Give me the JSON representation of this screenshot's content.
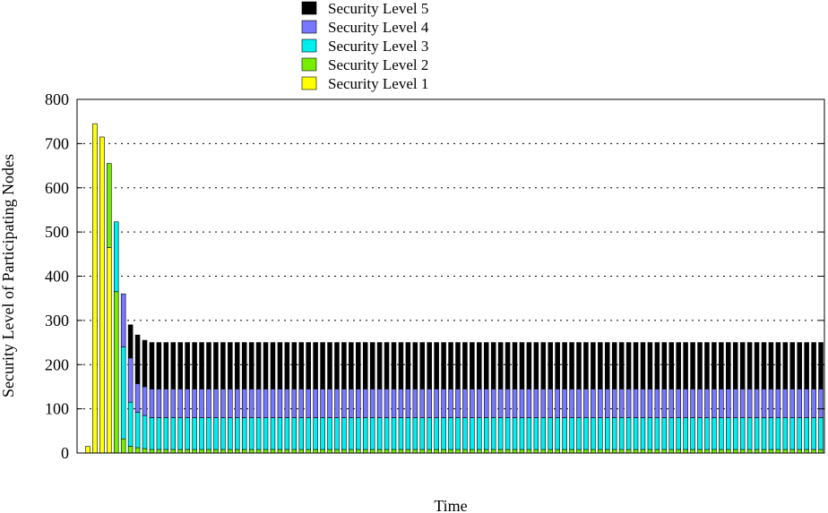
{
  "chart_data": {
    "type": "bar",
    "stacked": true,
    "xlabel": "Time",
    "ylabel": "Security Level of Participating Nodes",
    "ylim": [
      0,
      800
    ],
    "yticks": [
      0,
      100,
      200,
      300,
      400,
      500,
      600,
      700,
      800
    ],
    "ytick_labels": [
      "0",
      "100",
      "200",
      "300",
      "400",
      "500",
      "600",
      "700",
      "800"
    ],
    "grid": "horizontal dotted",
    "legend_position": "top",
    "x": [
      1,
      2,
      3,
      4,
      5,
      6,
      7,
      8,
      9,
      10,
      11,
      12,
      13,
      14,
      15,
      16,
      17,
      18,
      19,
      20,
      21,
      22,
      23,
      24,
      25,
      26,
      27,
      28,
      29,
      30,
      31,
      32,
      33,
      34,
      35,
      36,
      37,
      38,
      39,
      40,
      41,
      42,
      43,
      44,
      45,
      46,
      47,
      48,
      49,
      50,
      51,
      52,
      53,
      54,
      55,
      56,
      57,
      58,
      59,
      60,
      61,
      62,
      63,
      64,
      65,
      66,
      67,
      68,
      69,
      70,
      71,
      72,
      73,
      74,
      75,
      76,
      77,
      78,
      79,
      80,
      81,
      82,
      83,
      84,
      85,
      86,
      87,
      88,
      89,
      90,
      91,
      92,
      93,
      94,
      95,
      96,
      97,
      98,
      99,
      100,
      101,
      102,
      103,
      104
    ],
    "series": [
      {
        "name": "Security Level 1",
        "color": "#ffff00",
        "values": [
          15,
          745,
          715,
          465,
          0,
          0,
          0,
          0,
          0,
          0,
          0,
          0,
          0,
          0,
          0,
          0,
          0,
          0,
          0,
          0,
          0,
          0,
          0,
          0,
          0,
          0,
          0,
          0,
          0,
          0,
          0,
          0,
          0,
          0,
          0,
          0,
          0,
          0,
          0,
          0,
          0,
          0,
          0,
          0,
          0,
          0,
          0,
          0,
          0,
          0,
          0,
          0,
          0,
          0,
          0,
          0,
          0,
          0,
          0,
          0,
          0,
          0,
          0,
          0,
          0,
          0,
          0,
          0,
          0,
          0,
          0,
          0,
          0,
          0,
          0,
          0,
          0,
          0,
          0,
          0,
          0,
          0,
          0,
          0,
          0,
          0,
          0,
          0,
          0,
          0,
          0,
          0,
          0,
          0,
          0,
          0,
          0,
          0,
          0,
          0,
          0,
          0,
          0,
          0
        ]
      },
      {
        "name": "Security Level 2",
        "color": "#77ee00",
        "values": [
          0,
          0,
          0,
          190,
          365,
          32,
          15,
          12,
          10,
          8,
          8,
          8,
          8,
          8,
          8,
          8,
          8,
          8,
          8,
          8,
          8,
          8,
          8,
          8,
          8,
          8,
          8,
          8,
          8,
          8,
          8,
          8,
          8,
          8,
          8,
          8,
          8,
          8,
          8,
          8,
          8,
          8,
          8,
          8,
          8,
          8,
          8,
          8,
          8,
          8,
          8,
          8,
          8,
          8,
          8,
          8,
          8,
          8,
          8,
          8,
          8,
          8,
          8,
          8,
          8,
          8,
          8,
          8,
          8,
          8,
          8,
          8,
          8,
          8,
          8,
          8,
          8,
          8,
          8,
          8,
          8,
          8,
          8,
          8,
          8,
          8,
          8,
          8,
          8,
          8,
          8,
          8,
          8,
          8,
          8,
          8,
          8,
          8,
          8,
          8,
          8,
          8,
          8,
          8
        ]
      },
      {
        "name": "Security Level 3",
        "color": "#00eeee",
        "values": [
          0,
          0,
          0,
          0,
          158,
          208,
          100,
          80,
          75,
          72,
          72,
          72,
          72,
          72,
          72,
          72,
          72,
          72,
          72,
          72,
          72,
          72,
          72,
          72,
          72,
          72,
          72,
          72,
          72,
          72,
          72,
          72,
          72,
          72,
          72,
          72,
          72,
          72,
          72,
          72,
          72,
          72,
          72,
          72,
          72,
          72,
          72,
          72,
          72,
          72,
          72,
          72,
          72,
          72,
          72,
          72,
          72,
          72,
          72,
          72,
          72,
          72,
          72,
          72,
          72,
          72,
          72,
          72,
          72,
          72,
          72,
          72,
          72,
          72,
          72,
          72,
          72,
          72,
          72,
          72,
          72,
          72,
          72,
          72,
          72,
          72,
          72,
          72,
          72,
          72,
          72,
          72,
          72,
          72,
          72,
          72,
          72,
          72,
          72,
          72,
          72,
          72,
          72,
          72
        ]
      },
      {
        "name": "Security Level 4",
        "color": "#7777ff",
        "values": [
          0,
          0,
          0,
          0,
          0,
          120,
          100,
          65,
          65,
          65,
          65,
          65,
          65,
          65,
          65,
          65,
          65,
          65,
          65,
          65,
          65,
          65,
          65,
          65,
          65,
          65,
          65,
          65,
          65,
          65,
          65,
          65,
          65,
          65,
          65,
          65,
          65,
          65,
          65,
          65,
          65,
          65,
          65,
          65,
          65,
          65,
          65,
          65,
          65,
          65,
          65,
          65,
          65,
          65,
          65,
          65,
          65,
          65,
          65,
          65,
          65,
          65,
          65,
          65,
          65,
          65,
          65,
          65,
          65,
          65,
          65,
          65,
          65,
          65,
          65,
          65,
          65,
          65,
          65,
          65,
          65,
          65,
          65,
          65,
          65,
          65,
          65,
          65,
          65,
          65,
          65,
          65,
          65,
          65,
          65,
          65,
          65,
          65,
          65,
          65,
          65,
          65,
          65,
          65
        ]
      },
      {
        "name": "Security Level 5",
        "color": "#000000",
        "values": [
          0,
          0,
          0,
          0,
          0,
          0,
          75,
          110,
          105,
          105,
          105,
          105,
          105,
          105,
          105,
          105,
          105,
          105,
          105,
          105,
          105,
          105,
          105,
          105,
          105,
          105,
          105,
          105,
          105,
          105,
          105,
          105,
          105,
          105,
          105,
          105,
          105,
          105,
          105,
          105,
          105,
          105,
          105,
          105,
          105,
          105,
          105,
          105,
          105,
          105,
          105,
          105,
          105,
          105,
          105,
          105,
          105,
          105,
          105,
          105,
          105,
          105,
          105,
          105,
          105,
          105,
          105,
          105,
          105,
          105,
          105,
          105,
          105,
          105,
          105,
          105,
          105,
          105,
          105,
          105,
          105,
          105,
          105,
          105,
          105,
          105,
          105,
          105,
          105,
          105,
          105,
          105,
          105,
          105,
          105,
          105,
          105,
          105,
          105,
          105,
          105,
          105,
          105,
          105
        ]
      }
    ]
  }
}
